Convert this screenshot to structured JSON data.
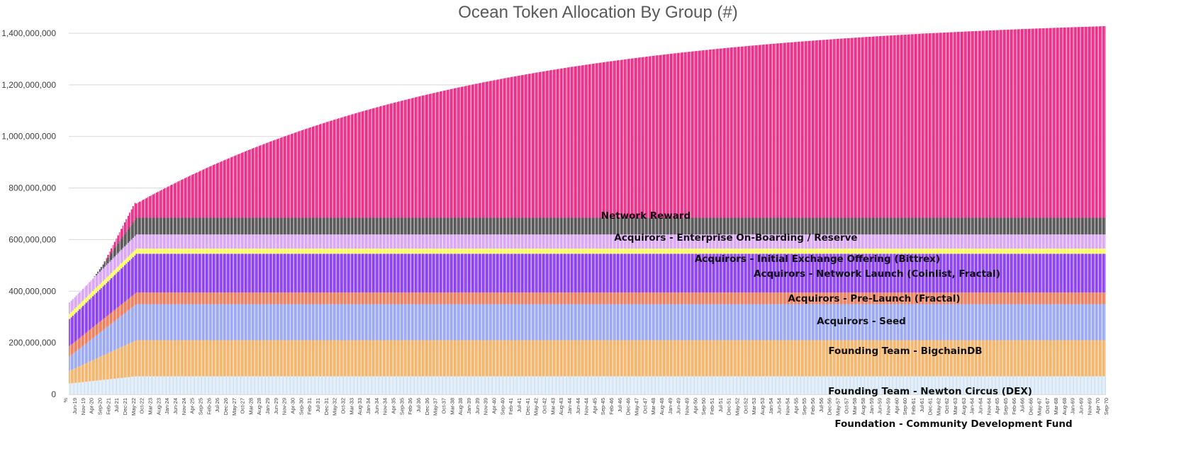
{
  "chart_data": {
    "type": "bar",
    "stacked": true,
    "title": "Ocean Token Allocation By Group (#)",
    "xlabel": "",
    "ylabel": "",
    "ylim": [
      0,
      1400000000
    ],
    "yticks": [
      "0",
      "200,000,000",
      "400,000,000",
      "600,000,000",
      "800,000,000",
      "1,000,000,000",
      "1,200,000,000",
      "1,400,000,000"
    ],
    "grid": true,
    "first_tick_label": "%",
    "xticks": [
      "Jun-19",
      "Nov-19",
      "Apr-20",
      "Sep-20",
      "Feb-21",
      "Jul-21",
      "Dec-21",
      "May-22",
      "Oct-22",
      "Mar-23",
      "Aug-23",
      "Jan-24",
      "Jun-24",
      "Nov-24",
      "Apr-25",
      "Sep-25",
      "Feb-26",
      "Jul-26",
      "Dec-26",
      "May-27",
      "Oct-27",
      "Mar-28",
      "Aug-28",
      "Jan-29",
      "Jun-29",
      "Nov-29",
      "Apr-30",
      "Sep-30",
      "Feb-31",
      "Jul-31",
      "Dec-31",
      "May-32",
      "Oct-32",
      "Mar-33",
      "Aug-33",
      "Jan-34",
      "Jun-34",
      "Nov-34",
      "Apr-35",
      "Sep-35",
      "Feb-36",
      "Jul-36",
      "Dec-36",
      "May-37",
      "Oct-37",
      "Mar-38",
      "Aug-38",
      "Jan-39",
      "Jun-39",
      "Nov-39",
      "Apr-40",
      "Sep-40",
      "Feb-41",
      "Jul-41",
      "Dec-41",
      "May-42",
      "Oct-42",
      "Mar-43",
      "Aug-43",
      "Jan-44",
      "Jun-44",
      "Nov-44",
      "Apr-45",
      "Sep-45",
      "Feb-46",
      "Jul-46",
      "Dec-46",
      "May-47",
      "Oct-47",
      "Mar-48",
      "Aug-48",
      "Jan-49",
      "Jun-49",
      "Nov-49",
      "Apr-50",
      "Sep-50",
      "Feb-51",
      "Jul-51",
      "Dec-51",
      "May-52",
      "Oct-52",
      "Mar-53",
      "Aug-53",
      "Jan-54",
      "Jun-54",
      "Nov-54",
      "Apr-55",
      "Sep-55",
      "Feb-56",
      "Jul-56",
      "Dec-56",
      "May-57",
      "Oct-57",
      "Mar-58",
      "Aug-58",
      "Jan-59",
      "Jun-59",
      "Nov-59",
      "Apr-60",
      "Sep-60",
      "Feb-61",
      "Jul-61",
      "Dec-61",
      "May-62",
      "Oct-62",
      "Mar-63",
      "Aug-63",
      "Jan-64",
      "Jun-64",
      "Nov-64",
      "Apr-65",
      "Sep-65",
      "Feb-66",
      "Jul-66",
      "Dec-66",
      "May-67",
      "Oct-67",
      "Mar-68",
      "Aug-68",
      "Jan-69",
      "Jun-69",
      "Nov-69",
      "Apr-70",
      "Sep-70"
    ],
    "series": [
      {
        "name": "Foundation - Community Development Fund",
        "color": "#e3eef9",
        "stripe": "#bdd7ee"
      },
      {
        "name": "Founding Team - Newton Circus (DEX)",
        "color": "#f4b46a",
        "stripe": "#ffffff"
      },
      {
        "name": "Founding Team - BigchainDB",
        "color": "#9aa8f3",
        "stripe": "#ffffff"
      },
      {
        "name": "Acquirors - Seed",
        "color": "#ee7d5a",
        "stripe": "#ffffff"
      },
      {
        "name": "Acquirors - Pre-Launch (Fractal)",
        "color": "#8b3ff0",
        "stripe": "#ffffff"
      },
      {
        "name": "Acquirors - Network Launch (Coinlist, Fractal)",
        "color": "#ffff55",
        "stripe": "#ffffff"
      },
      {
        "name": "Acquirors - Initial Exchange Offering (Bittrex)",
        "color": "#d9a6f5",
        "stripe": "#ffffff"
      },
      {
        "name": "Acquirors - Enterprise On-Boarding / Reserve",
        "color": "#555555",
        "stripe": "#ffffff"
      },
      {
        "name": "Network Reward",
        "color": "#ea2e87",
        "stripe": "#ffffff"
      }
    ],
    "final_values": [
      70000000,
      140000000,
      140000000,
      45000000,
      150000000,
      20000000,
      55000000,
      65000000,
      700000000
    ],
    "network_reward_total_at_end": 1385000000
  }
}
